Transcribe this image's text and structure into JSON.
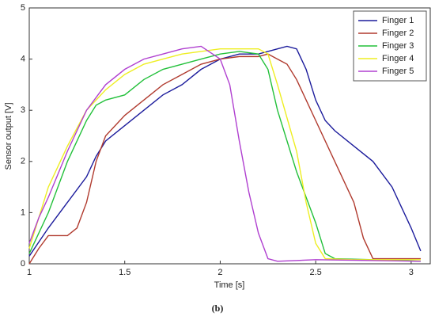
{
  "chart_data": {
    "type": "line",
    "xlabel": "Time [s]",
    "ylabel": "Sensor output [V]",
    "caption": "(b)",
    "xlim": [
      1,
      3.1
    ],
    "ylim": [
      0,
      5
    ],
    "xticks": [
      1,
      1.5,
      2,
      2.5,
      3
    ],
    "yticks": [
      0,
      1,
      2,
      3,
      4,
      5
    ],
    "legend": "upper right",
    "series": [
      {
        "name": "Finger 1",
        "color": "#1c1c9c",
        "x": [
          1.0,
          1.1,
          1.2,
          1.3,
          1.35,
          1.4,
          1.5,
          1.6,
          1.7,
          1.8,
          1.9,
          2.0,
          2.1,
          2.2,
          2.25,
          2.3,
          2.35,
          2.4,
          2.45,
          2.5,
          2.55,
          2.6,
          2.7,
          2.8,
          2.9,
          3.0,
          3.05
        ],
        "values": [
          0.15,
          0.7,
          1.2,
          1.7,
          2.1,
          2.4,
          2.7,
          3.0,
          3.3,
          3.5,
          3.8,
          4.0,
          4.1,
          4.1,
          4.15,
          4.2,
          4.25,
          4.2,
          3.8,
          3.2,
          2.8,
          2.6,
          2.3,
          2.0,
          1.5,
          0.7,
          0.25
        ]
      },
      {
        "name": "Finger 2",
        "color": "#b03a2e",
        "x": [
          1.0,
          1.05,
          1.1,
          1.2,
          1.25,
          1.3,
          1.35,
          1.4,
          1.5,
          1.6,
          1.7,
          1.8,
          1.9,
          2.0,
          2.1,
          2.2,
          2.25,
          2.3,
          2.35,
          2.4,
          2.5,
          2.6,
          2.7,
          2.75,
          2.8,
          2.9,
          3.05
        ],
        "values": [
          0.0,
          0.3,
          0.55,
          0.55,
          0.7,
          1.2,
          2.0,
          2.5,
          2.9,
          3.2,
          3.5,
          3.7,
          3.9,
          4.0,
          4.05,
          4.05,
          4.1,
          4.0,
          3.9,
          3.6,
          2.8,
          2.0,
          1.2,
          0.5,
          0.1,
          0.1,
          0.1
        ]
      },
      {
        "name": "Finger 3",
        "color": "#22c03a",
        "x": [
          1.0,
          1.1,
          1.2,
          1.3,
          1.35,
          1.4,
          1.5,
          1.6,
          1.7,
          1.8,
          1.9,
          2.0,
          2.1,
          2.2,
          2.25,
          2.3,
          2.4,
          2.5,
          2.55,
          2.6,
          2.8,
          3.05
        ],
        "values": [
          0.2,
          1.0,
          2.0,
          2.8,
          3.1,
          3.2,
          3.3,
          3.6,
          3.8,
          3.9,
          4.0,
          4.1,
          4.15,
          4.1,
          3.8,
          3.0,
          1.8,
          0.8,
          0.2,
          0.1,
          0.08,
          0.05
        ]
      },
      {
        "name": "Finger 4",
        "color": "#eeee22",
        "x": [
          1.0,
          1.1,
          1.2,
          1.3,
          1.4,
          1.5,
          1.6,
          1.7,
          1.8,
          1.9,
          2.0,
          2.1,
          2.2,
          2.25,
          2.3,
          2.4,
          2.45,
          2.5,
          2.55,
          2.7,
          3.05
        ],
        "values": [
          0.3,
          1.5,
          2.3,
          3.0,
          3.4,
          3.7,
          3.9,
          4.0,
          4.1,
          4.15,
          4.2,
          4.2,
          4.2,
          4.1,
          3.5,
          2.2,
          1.2,
          0.4,
          0.1,
          0.08,
          0.08
        ]
      },
      {
        "name": "Finger 5",
        "color": "#b040d0",
        "x": [
          1.0,
          1.05,
          1.1,
          1.2,
          1.3,
          1.4,
          1.5,
          1.6,
          1.7,
          1.8,
          1.9,
          2.0,
          2.05,
          2.1,
          2.15,
          2.2,
          2.25,
          2.3,
          2.5,
          3.05
        ],
        "values": [
          0.4,
          0.9,
          1.3,
          2.2,
          3.0,
          3.5,
          3.8,
          4.0,
          4.1,
          4.2,
          4.25,
          4.0,
          3.5,
          2.4,
          1.4,
          0.6,
          0.1,
          0.05,
          0.08,
          0.05
        ]
      }
    ]
  }
}
